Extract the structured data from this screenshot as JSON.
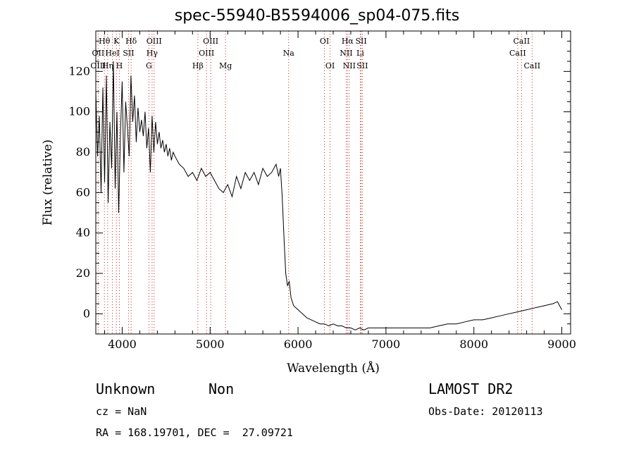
{
  "chart_data": {
    "type": "line",
    "title": "spec-55940-B5594006_sp04-075.fits",
    "xlabel": "Wavelength (Å)",
    "ylabel": "Flux (relative)",
    "xlim": [
      3700,
      9100
    ],
    "ylim": [
      -10,
      140
    ],
    "xticks": [
      4000,
      5000,
      6000,
      7000,
      8000,
      9000
    ],
    "yticks": [
      0,
      20,
      40,
      60,
      80,
      100,
      120
    ],
    "grid": false,
    "series": [
      {
        "x": [
          3700,
          3720,
          3740,
          3760,
          3780,
          3800,
          3820,
          3840,
          3860,
          3880,
          3900,
          3920,
          3940,
          3960,
          3980,
          4000,
          4020,
          4040,
          4060,
          4080,
          4100,
          4120,
          4140,
          4160,
          4180,
          4200,
          4220,
          4240,
          4260,
          4280,
          4300,
          4320,
          4340,
          4360,
          4380,
          4400,
          4420,
          4440,
          4460,
          4480,
          4500,
          4520,
          4540,
          4560,
          4580,
          4600,
          4650,
          4700,
          4750,
          4800,
          4850,
          4900,
          4950,
          5000,
          5050,
          5100,
          5150,
          5200,
          5250,
          5300,
          5350,
          5400,
          5450,
          5500,
          5550,
          5600,
          5650,
          5700,
          5750,
          5780,
          5800,
          5820,
          5840,
          5860,
          5880,
          5900,
          5920,
          5950,
          6000,
          6050,
          6100,
          6150,
          6200,
          6250,
          6300,
          6350,
          6400,
          6450,
          6500,
          6550,
          6600,
          6650,
          6700,
          6750,
          6800,
          6900,
          7000,
          7100,
          7200,
          7300,
          7400,
          7500,
          7600,
          7700,
          7800,
          7900,
          8000,
          8100,
          8200,
          8300,
          8400,
          8500,
          8600,
          8700,
          8800,
          8900,
          8950,
          9000
        ],
        "y": [
          110,
          78,
          98,
          60,
          112,
          65,
          118,
          55,
          95,
          72,
          125,
          62,
          100,
          50,
          88,
          115,
          70,
          105,
          92,
          78,
          118,
          95,
          108,
          85,
          102,
          90,
          96,
          88,
          100,
          82,
          92,
          70,
          98,
          80,
          95,
          84,
          90,
          82,
          86,
          80,
          84,
          78,
          82,
          76,
          80,
          78,
          74,
          72,
          68,
          70,
          66,
          72,
          68,
          70,
          66,
          62,
          60,
          64,
          58,
          68,
          62,
          70,
          66,
          70,
          64,
          72,
          68,
          70,
          74,
          68,
          72,
          58,
          38,
          20,
          14,
          16,
          8,
          4,
          2,
          0,
          -2,
          -3,
          -4,
          -5,
          -5,
          -6,
          -5,
          -6,
          -6,
          -7,
          -7,
          -8,
          -7,
          -8,
          -7,
          -7,
          -7,
          -7,
          -7,
          -7,
          -7,
          -7,
          -6,
          -5,
          -5,
          -4,
          -3,
          -3,
          -2,
          -1,
          0,
          1,
          2,
          3,
          4,
          5,
          6,
          2
        ]
      }
    ],
    "line_labels": [
      {
        "name": "Hθ",
        "wave": 3798,
        "row": 1
      },
      {
        "name": "K",
        "wave": 3934,
        "row": 1
      },
      {
        "name": "Hδ",
        "wave": 4102,
        "row": 1
      },
      {
        "name": "OIII",
        "wave": 4363,
        "row": 1
      },
      {
        "name": "OIII",
        "wave": 5007,
        "row": 1
      },
      {
        "name": "OI",
        "wave": 6300,
        "row": 1
      },
      {
        "name": "Hα",
        "wave": 6563,
        "row": 1
      },
      {
        "name": "SII",
        "wave": 6717,
        "row": 1
      },
      {
        "name": "CaII",
        "wave": 8542,
        "row": 1
      },
      {
        "name": "OII",
        "wave": 3727,
        "row": 2
      },
      {
        "name": "HeI",
        "wave": 3889,
        "row": 2
      },
      {
        "name": "SII",
        "wave": 4072,
        "row": 2
      },
      {
        "name": "Hγ",
        "wave": 4340,
        "row": 2
      },
      {
        "name": "OIII",
        "wave": 4959,
        "row": 2
      },
      {
        "name": "Na",
        "wave": 5893,
        "row": 2
      },
      {
        "name": "NII",
        "wave": 6548,
        "row": 2
      },
      {
        "name": "Li",
        "wave": 6708,
        "row": 2
      },
      {
        "name": "CaII",
        "wave": 8498,
        "row": 2
      },
      {
        "name": "OIII",
        "wave": 3727,
        "row": 3
      },
      {
        "name": "Hη",
        "wave": 3835,
        "row": 3
      },
      {
        "name": "H",
        "wave": 3968,
        "row": 3
      },
      {
        "name": "G",
        "wave": 4304,
        "row": 3
      },
      {
        "name": "Hβ",
        "wave": 4861,
        "row": 3
      },
      {
        "name": "Mg",
        "wave": 5175,
        "row": 3
      },
      {
        "name": "OI",
        "wave": 6364,
        "row": 3
      },
      {
        "name": "NII",
        "wave": 6583,
        "row": 3
      },
      {
        "name": "SII",
        "wave": 6731,
        "row": 3
      },
      {
        "name": "CaII",
        "wave": 8662,
        "row": 3
      }
    ],
    "line_marker_color": "#cc2222"
  },
  "info": {
    "class": "Unknown",
    "subclass": "Non",
    "survey": "LAMOST DR2",
    "cz": "cz = NaN",
    "obs_date": "Obs-Date: 20120113",
    "coords": "RA = 168.19701, DEC =  27.09721"
  }
}
